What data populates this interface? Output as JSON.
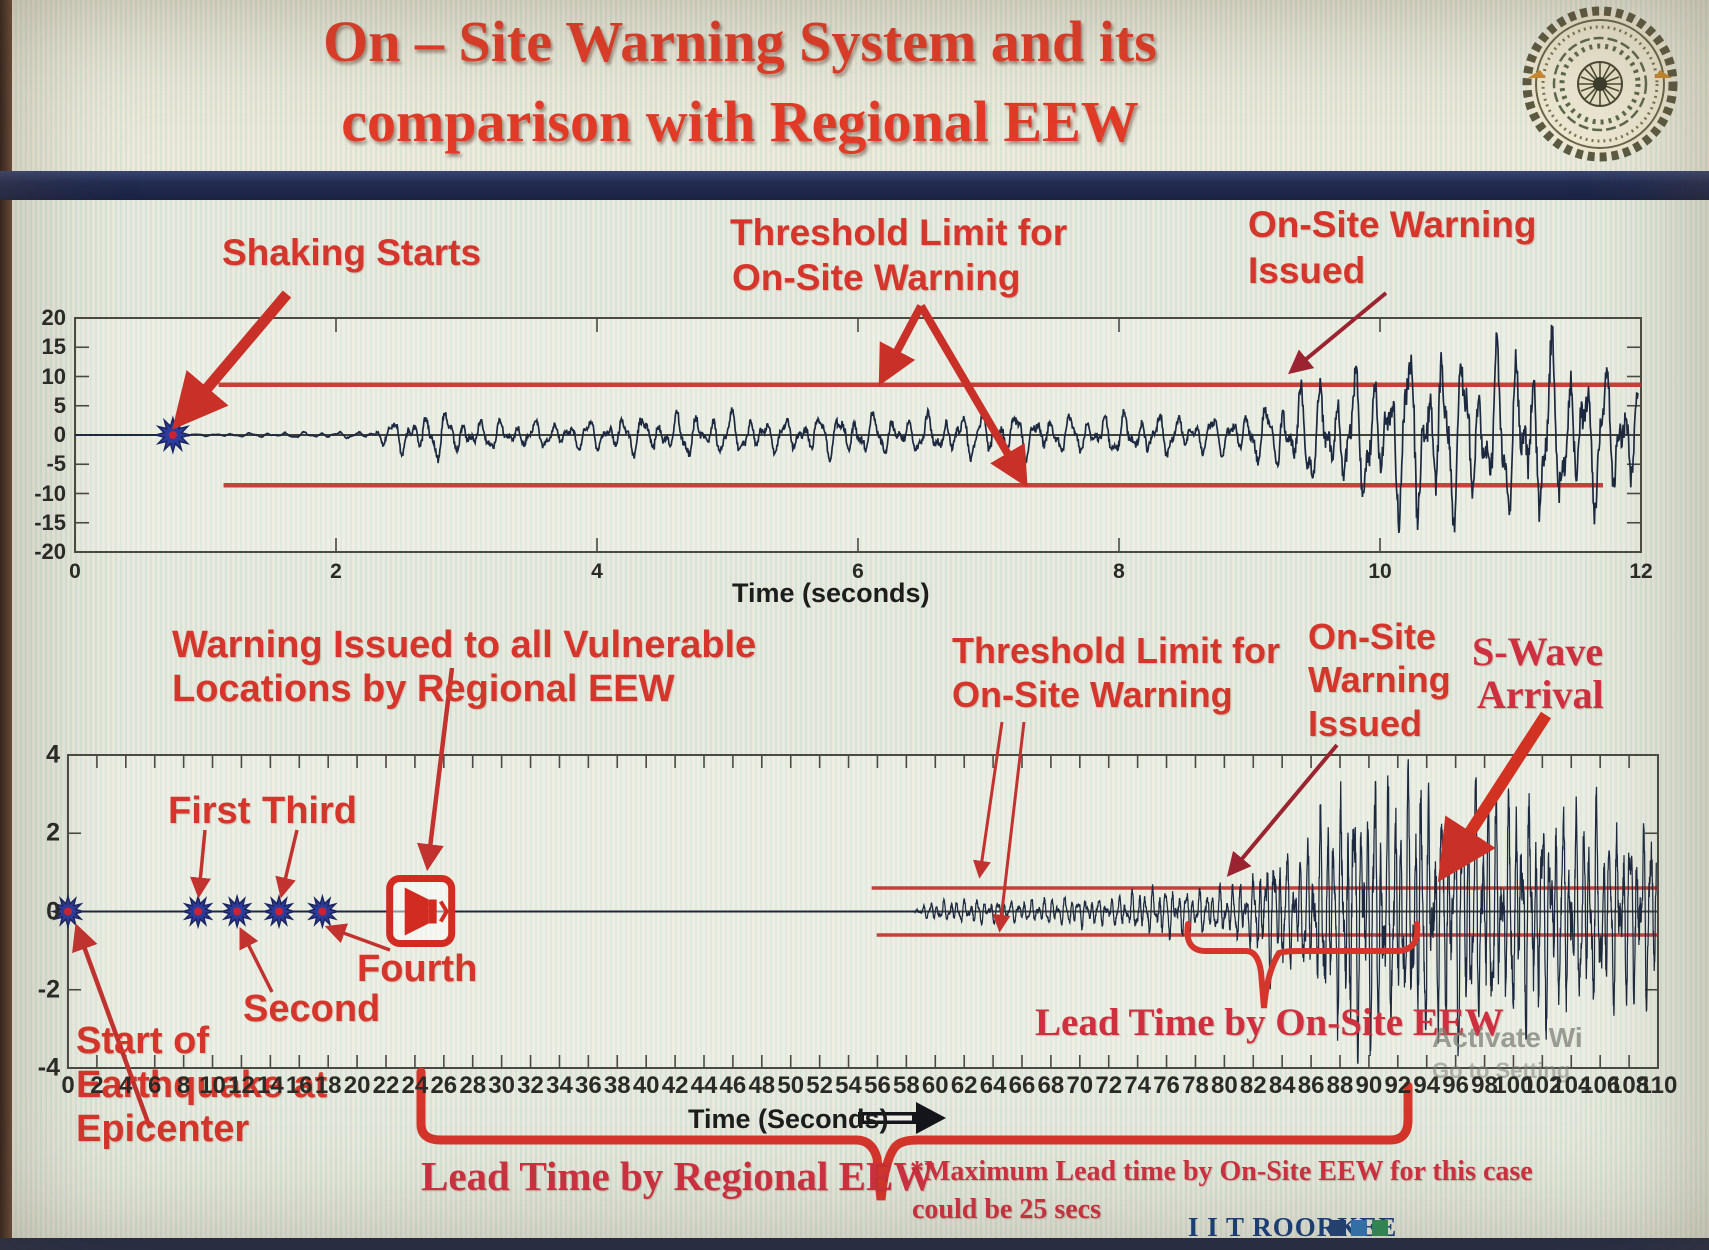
{
  "title": {
    "line1": "On – Site Warning System and its",
    "line2": "comparison with Regional EEW"
  },
  "labels": {
    "shaking_starts": "Shaking Starts",
    "threshold_top_1": "Threshold Limit for",
    "threshold_top_2": "On-Site Warning",
    "onsite_top_1": "On-Site Warning",
    "onsite_top_2": "Issued",
    "warn_vuln_1": "Warning Issued to all Vulnerable",
    "warn_vuln_2": "Locations by Regional EEW",
    "first": "First",
    "second": "Second",
    "third": "Third",
    "fourth": "Fourth",
    "start_eq_1": "Start of",
    "start_eq_2": "Earthquake at",
    "start_eq_3": "Epicenter",
    "threshold_bot_1": "Threshold Limit for",
    "threshold_bot_2": "On-Site Warning",
    "onsite_bot_1": "On-Site",
    "onsite_bot_2": "Warning",
    "onsite_bot_3": "Issued",
    "swave_1": "S-Wave",
    "swave_2": "Arrival",
    "lead_onsite": "Lead Time by On-Site EEW",
    "lead_regional": "Lead Time by Regional EEW",
    "max_lead_1": "*Maximum Lead time by On-Site EEW for this case",
    "max_lead_2": "could be 25 secs",
    "time_label_top": "Time (seconds)",
    "time_label_bottom": "Time (Seconds)"
  },
  "footer": {
    "brand": "I I T ROORKEE"
  },
  "watermark": {
    "line1": "Activate Wi",
    "line2": "Go to Setting"
  },
  "colors": {
    "annotation_red": "#d5352b",
    "title_red": "#e23b27",
    "dark_red_arrow": "#9a2430",
    "threshold_red": "#c03028",
    "waveform": "#1d2940",
    "star_blue": "#2c3c9c",
    "star_center": "#cc2233",
    "brand_navy": "#123c7d",
    "footer_squares": [
      "#1c3f77",
      "#2e75b6",
      "#2e8b57"
    ]
  },
  "chart_data": [
    {
      "type": "line",
      "name": "onsite-station-seismogram",
      "xlabel": "Time (seconds)",
      "ylabel": "",
      "xlim": [
        0,
        12
      ],
      "ylim": [
        -20,
        20
      ],
      "xticks": [
        0,
        2,
        4,
        6,
        8,
        10,
        12
      ],
      "yticks": [
        20,
        15,
        10,
        5,
        0,
        -5,
        -10,
        -15,
        -20
      ],
      "grid": false,
      "legend": "none",
      "threshold_upper": 8.6,
      "threshold_lower": -8.6,
      "threshold_start_t": 1.1,
      "shaking_start_t": 0.75,
      "warning_issued_t": 9.3,
      "wave_freqs": [
        46,
        29,
        88
      ],
      "wave_step": 0.0045,
      "envelope": [
        [
          0.78,
          0.12
        ],
        [
          1.1,
          0.28
        ],
        [
          1.7,
          0.5
        ],
        [
          2.25,
          0.6
        ],
        [
          2.5,
          3.6
        ],
        [
          2.75,
          4.6
        ],
        [
          3.1,
          2.8
        ],
        [
          3.7,
          2.5
        ],
        [
          4.3,
          3.6
        ],
        [
          4.9,
          4.2
        ],
        [
          5.4,
          3.1
        ],
        [
          5.9,
          4.3
        ],
        [
          6.4,
          3.3
        ],
        [
          7.0,
          4.5
        ],
        [
          7.6,
          3.5
        ],
        [
          8.2,
          4.1
        ],
        [
          8.7,
          3.4
        ],
        [
          9.1,
          5.0
        ],
        [
          9.35,
          8.8
        ],
        [
          9.7,
          10.5
        ],
        [
          10.0,
          13.5
        ],
        [
          10.35,
          17.5
        ],
        [
          10.8,
          15.0
        ],
        [
          11.2,
          17.5
        ],
        [
          11.6,
          13.5
        ],
        [
          11.98,
          11.0
        ]
      ],
      "clip_amp": 19,
      "markers": [
        {
          "t": 0.75,
          "v": 0,
          "kind": "star"
        }
      ]
    },
    {
      "type": "line",
      "name": "regional-eew-comparison-seismogram",
      "xlabel": "Time (Seconds)",
      "ylabel": "",
      "xlim": [
        0,
        110
      ],
      "ylim": [
        -4,
        4
      ],
      "xticks": [
        0,
        2,
        4,
        6,
        8,
        10,
        12,
        14,
        16,
        18,
        20,
        22,
        24,
        26,
        28,
        30,
        32,
        34,
        36,
        38,
        40,
        42,
        44,
        46,
        48,
        50,
        52,
        54,
        56,
        58,
        60,
        62,
        64,
        66,
        68,
        70,
        72,
        74,
        76,
        78,
        80,
        82,
        84,
        86,
        88,
        90,
        92,
        94,
        96,
        98,
        100,
        102,
        104,
        106,
        108,
        110
      ],
      "yticks": [
        4,
        2,
        0,
        -2,
        -4
      ],
      "grid": false,
      "legend": "none",
      "threshold_upper": 0.6,
      "threshold_lower": -0.6,
      "threshold_start_t": 55.6,
      "p_wave_start_t": 58.6,
      "s_wave_arrival_t": 94.5,
      "onsite_warning_issued_t": 80,
      "regional_warning_times": [
        9,
        11.7,
        14.6,
        17.6
      ],
      "regional_warning_issued_t": 24.4,
      "lead_time_regional_span": [
        24,
        92.7
      ],
      "lead_time_onsite_span": [
        77.5,
        92.5
      ],
      "max_lead_time_note_secs": 25,
      "wave_freqs": [
        13.5,
        8.2,
        22.7
      ],
      "wave_step": 0.018,
      "envelope": [
        [
          58.6,
          0.1
        ],
        [
          60,
          0.28
        ],
        [
          63,
          0.34
        ],
        [
          66,
          0.3
        ],
        [
          69,
          0.4
        ],
        [
          72,
          0.36
        ],
        [
          74,
          0.55
        ],
        [
          76,
          0.7
        ],
        [
          78,
          0.6
        ],
        [
          80,
          0.65
        ],
        [
          82,
          1.0
        ],
        [
          83.5,
          1.8
        ],
        [
          85,
          1.4
        ],
        [
          86,
          2.1
        ],
        [
          87.5,
          3.0
        ],
        [
          89,
          3.5
        ],
        [
          90.5,
          3.85
        ],
        [
          92,
          3.3
        ],
        [
          93.5,
          3.7
        ],
        [
          95,
          3.2
        ],
        [
          97,
          3.5
        ],
        [
          99,
          3.0
        ],
        [
          101,
          3.25
        ],
        [
          103,
          2.7
        ],
        [
          105,
          2.9
        ],
        [
          107,
          2.4
        ],
        [
          109,
          2.6
        ],
        [
          109.9,
          2.2
        ]
      ],
      "clip_amp": 3.92,
      "markers": [
        {
          "t": 0,
          "v": 0,
          "kind": "star"
        },
        {
          "t": 9,
          "v": 0,
          "kind": "star"
        },
        {
          "t": 11.7,
          "v": 0,
          "kind": "star"
        },
        {
          "t": 14.6,
          "v": 0,
          "kind": "star"
        },
        {
          "t": 17.6,
          "v": 0,
          "kind": "star"
        },
        {
          "t": 24.4,
          "v": 0,
          "kind": "speaker"
        }
      ]
    }
  ]
}
